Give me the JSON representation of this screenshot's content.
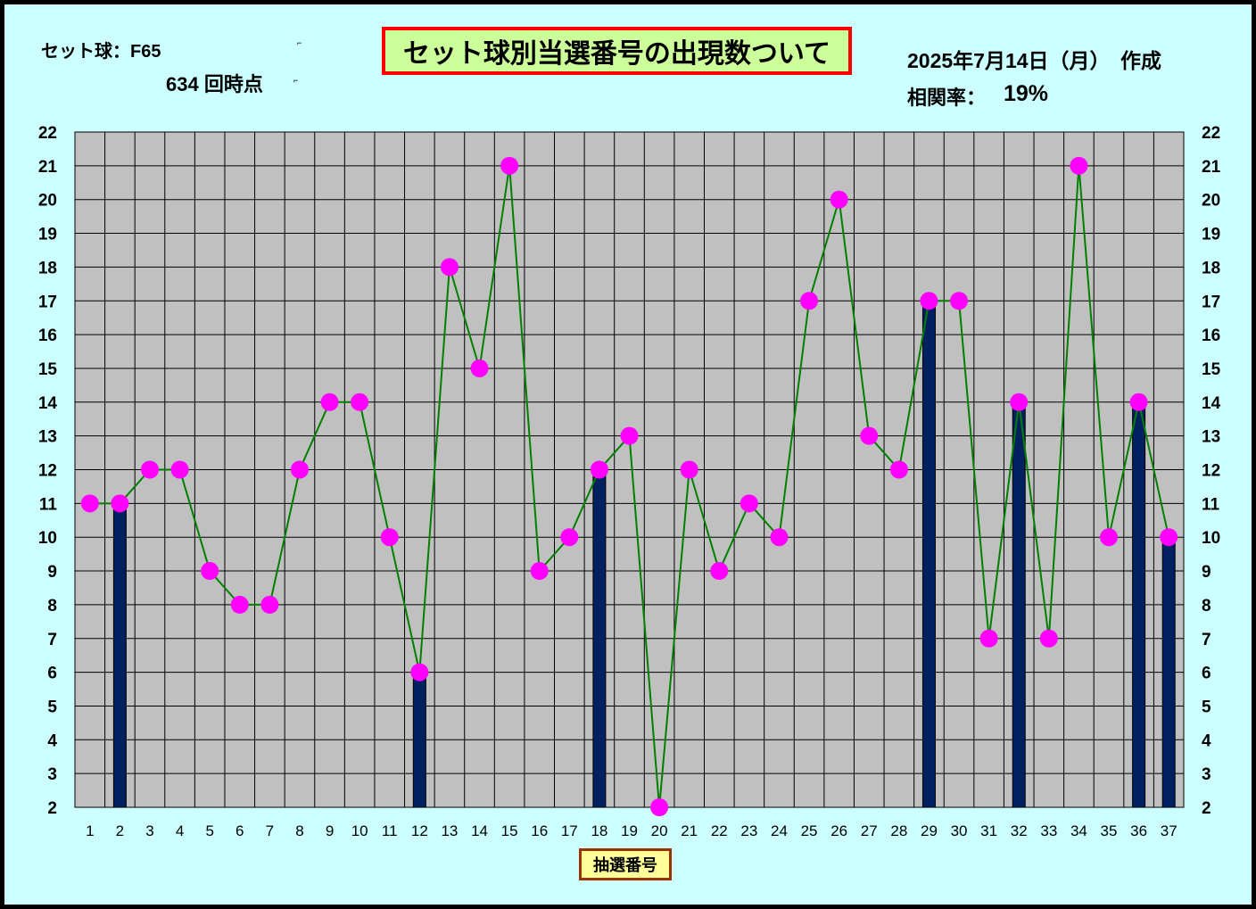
{
  "header": {
    "set_ball": "セット球：F65",
    "draw_count": "634  回時点",
    "title": "セット球別当選番号の出現数ついて",
    "date": "2025年7月14日（月）　作成",
    "correlation_label": "相関率：",
    "correlation_value": "19%"
  },
  "colors": {
    "background": "#ccffff",
    "plot_area": "#c0c0c0",
    "grid": "#000000",
    "bar": "#002060",
    "line": "#008000",
    "marker": "#ff00ff",
    "title_bg": "#ccff99",
    "title_border": "#ff0000",
    "xlabel_bg": "#ffff99",
    "xlabel_border": "#993300"
  },
  "chart_data": {
    "type": "bar+line",
    "title": "セット球別当選番号の出現数ついて",
    "xlabel": "抽選番号",
    "ylabel": "",
    "ylim": [
      2,
      22
    ],
    "y_ticks": [
      2,
      3,
      4,
      5,
      6,
      7,
      8,
      9,
      10,
      11,
      12,
      13,
      14,
      15,
      16,
      17,
      18,
      19,
      20,
      21,
      22
    ],
    "categories": [
      "1",
      "2",
      "3",
      "4",
      "5",
      "6",
      "7",
      "8",
      "9",
      "10",
      "11",
      "12",
      "13",
      "14",
      "15",
      "16",
      "17",
      "18",
      "19",
      "20",
      "21",
      "22",
      "23",
      "24",
      "25",
      "26",
      "27",
      "28",
      "29",
      "30",
      "31",
      "32",
      "33",
      "34",
      "35",
      "36",
      "37"
    ],
    "series": [
      {
        "type": "line",
        "values": [
          11,
          11,
          12,
          12,
          9,
          8,
          8,
          12,
          14,
          14,
          10,
          6,
          18,
          15,
          21,
          9,
          10,
          12,
          13,
          2,
          12,
          9,
          11,
          10,
          17,
          20,
          13,
          12,
          17,
          17,
          7,
          14,
          7,
          21,
          10,
          14,
          10
        ]
      },
      {
        "type": "bar",
        "values": [
          null,
          11,
          null,
          null,
          null,
          null,
          null,
          null,
          null,
          null,
          null,
          6,
          null,
          null,
          null,
          null,
          null,
          12,
          null,
          null,
          null,
          null,
          null,
          null,
          null,
          null,
          null,
          null,
          17,
          null,
          null,
          14,
          null,
          null,
          null,
          14,
          10
        ]
      }
    ],
    "grid": true,
    "legend": "none",
    "secondary_y_axis": true
  }
}
